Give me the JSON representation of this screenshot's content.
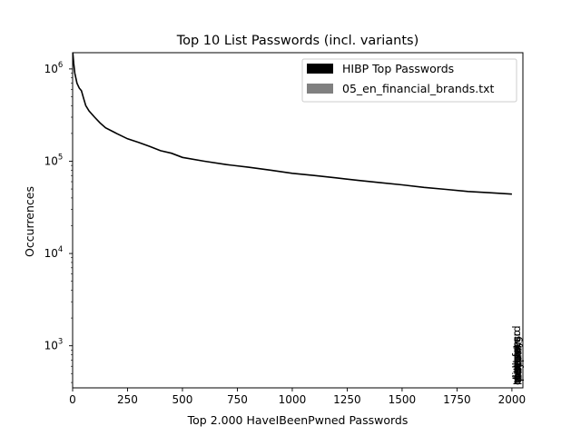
{
  "chart_data": {
    "type": "line",
    "title": "Top 10 List Passwords (incl. variants)",
    "xlabel": "Top 2.000 HaveIBeenPwned Passwords",
    "ylabel": "Occurrences",
    "xlim": [
      0,
      2050
    ],
    "ylim": [
      350,
      1500000
    ],
    "yscale": "log",
    "grid": false,
    "legend": "top-right",
    "xticks": [
      {
        "value": 0,
        "label": "0"
      },
      {
        "value": 250,
        "label": "250"
      },
      {
        "value": 500,
        "label": "500"
      },
      {
        "value": 750,
        "label": "750"
      },
      {
        "value": 1000,
        "label": "1000"
      },
      {
        "value": 1250,
        "label": "1250"
      },
      {
        "value": 1500,
        "label": "1500"
      },
      {
        "value": 1750,
        "label": "1750"
      },
      {
        "value": 2000,
        "label": "2000"
      }
    ],
    "yticks": [
      {
        "value": 1000,
        "base": "10",
        "exp": "3"
      },
      {
        "value": 10000,
        "base": "10",
        "exp": "4"
      },
      {
        "value": 100000,
        "base": "10",
        "exp": "5"
      },
      {
        "value": 1000000,
        "base": "10",
        "exp": "6"
      }
    ],
    "series": [
      {
        "name": "HIBP Top Passwords",
        "color": "#000000",
        "points": [
          [
            1,
            1500000
          ],
          [
            5,
            1150000
          ],
          [
            10,
            900000
          ],
          [
            20,
            700000
          ],
          [
            30,
            620000
          ],
          [
            40,
            580000
          ],
          [
            50,
            480000
          ],
          [
            60,
            400000
          ],
          [
            75,
            350000
          ],
          [
            100,
            300000
          ],
          [
            125,
            260000
          ],
          [
            150,
            230000
          ],
          [
            200,
            200000
          ],
          [
            250,
            175000
          ],
          [
            300,
            160000
          ],
          [
            350,
            145000
          ],
          [
            400,
            130000
          ],
          [
            450,
            122000
          ],
          [
            500,
            110000
          ],
          [
            600,
            100000
          ],
          [
            700,
            92000
          ],
          [
            800,
            86000
          ],
          [
            900,
            80000
          ],
          [
            1000,
            74000
          ],
          [
            1100,
            70000
          ],
          [
            1200,
            66000
          ],
          [
            1300,
            62000
          ],
          [
            1400,
            58500
          ],
          [
            1500,
            55500
          ],
          [
            1600,
            52000
          ],
          [
            1700,
            49500
          ],
          [
            1800,
            47000
          ],
          [
            1900,
            45500
          ],
          [
            2000,
            44000
          ]
        ]
      },
      {
        "name": "05_en_financial_brands.txt",
        "color": "#808080",
        "labels": [
          {
            "x": 2000,
            "text": "mastercard"
          },
          {
            "x": 2000,
            "text": "visa"
          },
          {
            "x": 2000,
            "text": "paypal"
          },
          {
            "x": 2000,
            "text": "amex"
          },
          {
            "x": 2000,
            "text": "chase"
          },
          {
            "x": 2000,
            "text": "citibank"
          },
          {
            "x": 2000,
            "text": "discover"
          },
          {
            "x": 2000,
            "text": "barclays"
          },
          {
            "x": 2000,
            "text": "hsbc"
          },
          {
            "x": 2000,
            "text": "wellsfargo"
          }
        ]
      }
    ]
  }
}
